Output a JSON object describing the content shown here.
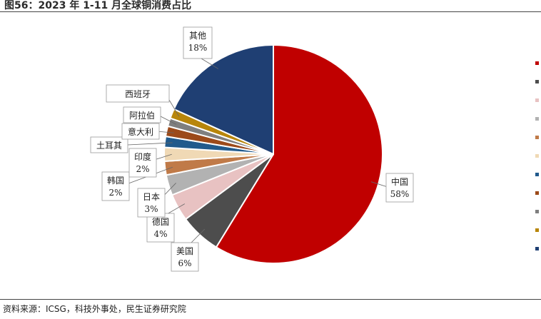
{
  "title": "图56：2023 年 1-11 月全球铜消费占比",
  "source": "资料来源：ICSG，科技外事处，民生证券研究院",
  "chart_data": {
    "type": "pie",
    "title": "图56：2023 年 1-11 月全球铜消费占比",
    "slices": [
      {
        "name": "中国",
        "value": 58,
        "label": "58%",
        "color": "#c00000"
      },
      {
        "name": "美国",
        "value": 6,
        "label": "6%",
        "color": "#4d4d4d"
      },
      {
        "name": "德国",
        "value": 4,
        "label": "4%",
        "color": "#e8c2c2"
      },
      {
        "name": "日本",
        "value": 3,
        "label": "3%",
        "color": "#b2b2b2"
      },
      {
        "name": "韩国",
        "value": 2,
        "label": "2%",
        "color": "#c07a48"
      },
      {
        "name": "印度",
        "value": 2,
        "label": "2%",
        "color": "#f0d9b5"
      },
      {
        "name": "土耳其",
        "value": 1.6,
        "label": "",
        "color": "#215a8c"
      },
      {
        "name": "意大利",
        "value": 1.5,
        "label": "",
        "color": "#9c4a1a"
      },
      {
        "name": "阿拉伯",
        "value": 1.2,
        "label": "",
        "color": "#7f7f7f"
      },
      {
        "name": "西班牙",
        "value": 1.4,
        "label": "",
        "color": "#b8860b"
      },
      {
        "name": "其他",
        "value": 18,
        "label": "18%",
        "color": "#1f3f73"
      }
    ],
    "legend_position": "right",
    "legend_color_order": [
      "#c00000",
      "#4d4d4d",
      "#e8c2c2",
      "#b2b2b2",
      "#c07a48",
      "#f0d9b5",
      "#215a8c",
      "#9c4a1a",
      "#7f7f7f",
      "#b8860b",
      "#1f3f73"
    ]
  }
}
